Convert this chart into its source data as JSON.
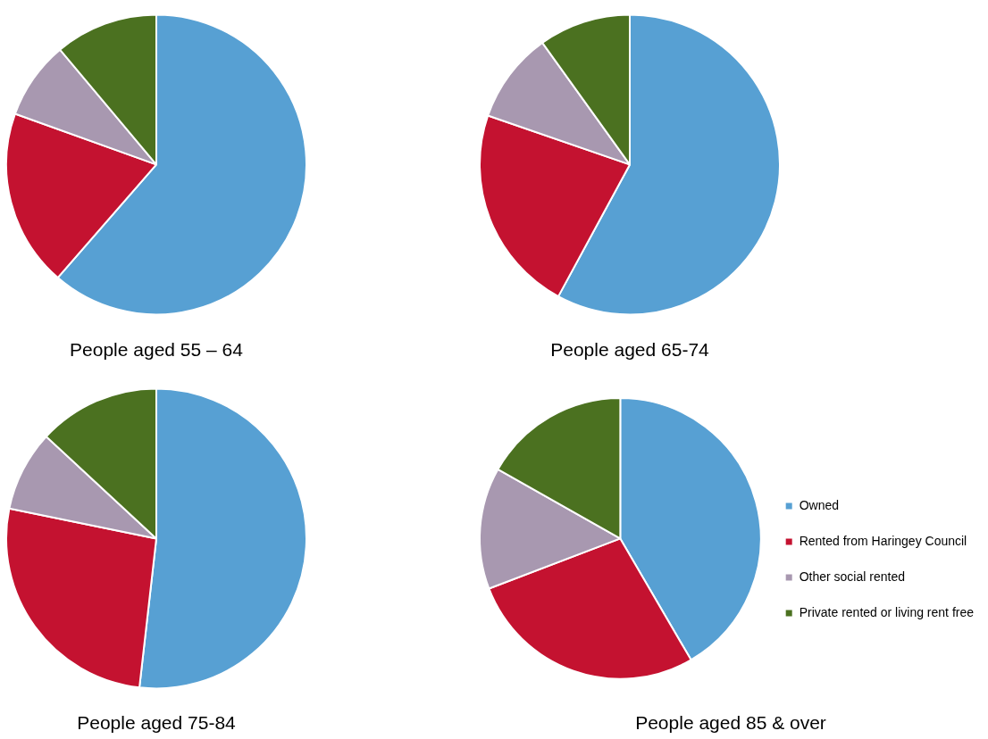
{
  "chart_data": [
    {
      "type": "pie",
      "title": "People aged 55 – 64",
      "categories": [
        null,
        null,
        null,
        null
      ],
      "values": [
        61.4,
        19.1,
        8.4,
        11.1
      ],
      "colors": [
        "#57a0d3",
        "#c41230",
        "#a898b0",
        "#4b7120"
      ],
      "legend": false
    },
    {
      "type": "pie",
      "title": "People aged 65-74",
      "categories": [
        null,
        null,
        null,
        null
      ],
      "values": [
        57.9,
        22.4,
        9.8,
        9.9
      ],
      "colors": [
        "#57a0d3",
        "#c41230",
        "#a898b0",
        "#4b7120"
      ],
      "legend": false
    },
    {
      "type": "pie",
      "title": "People aged 75-84",
      "categories": [
        null,
        null,
        null,
        null
      ],
      "values": [
        51.8,
        26.4,
        8.7,
        13.1
      ],
      "colors": [
        "#57a0d3",
        "#c41230",
        "#a898b0",
        "#4b7120"
      ],
      "legend": false
    },
    {
      "type": "pie",
      "title": "People aged 85 & over",
      "categories": [
        "Owned",
        "Rented from Haringey Council",
        "Other social rented",
        "Private rented or living rent free"
      ],
      "values": [
        41.6,
        27.6,
        14.0,
        16.8
      ],
      "colors": [
        "#57a0d3",
        "#c41230",
        "#a898b0",
        "#4b7120"
      ],
      "legend": "right"
    }
  ]
}
